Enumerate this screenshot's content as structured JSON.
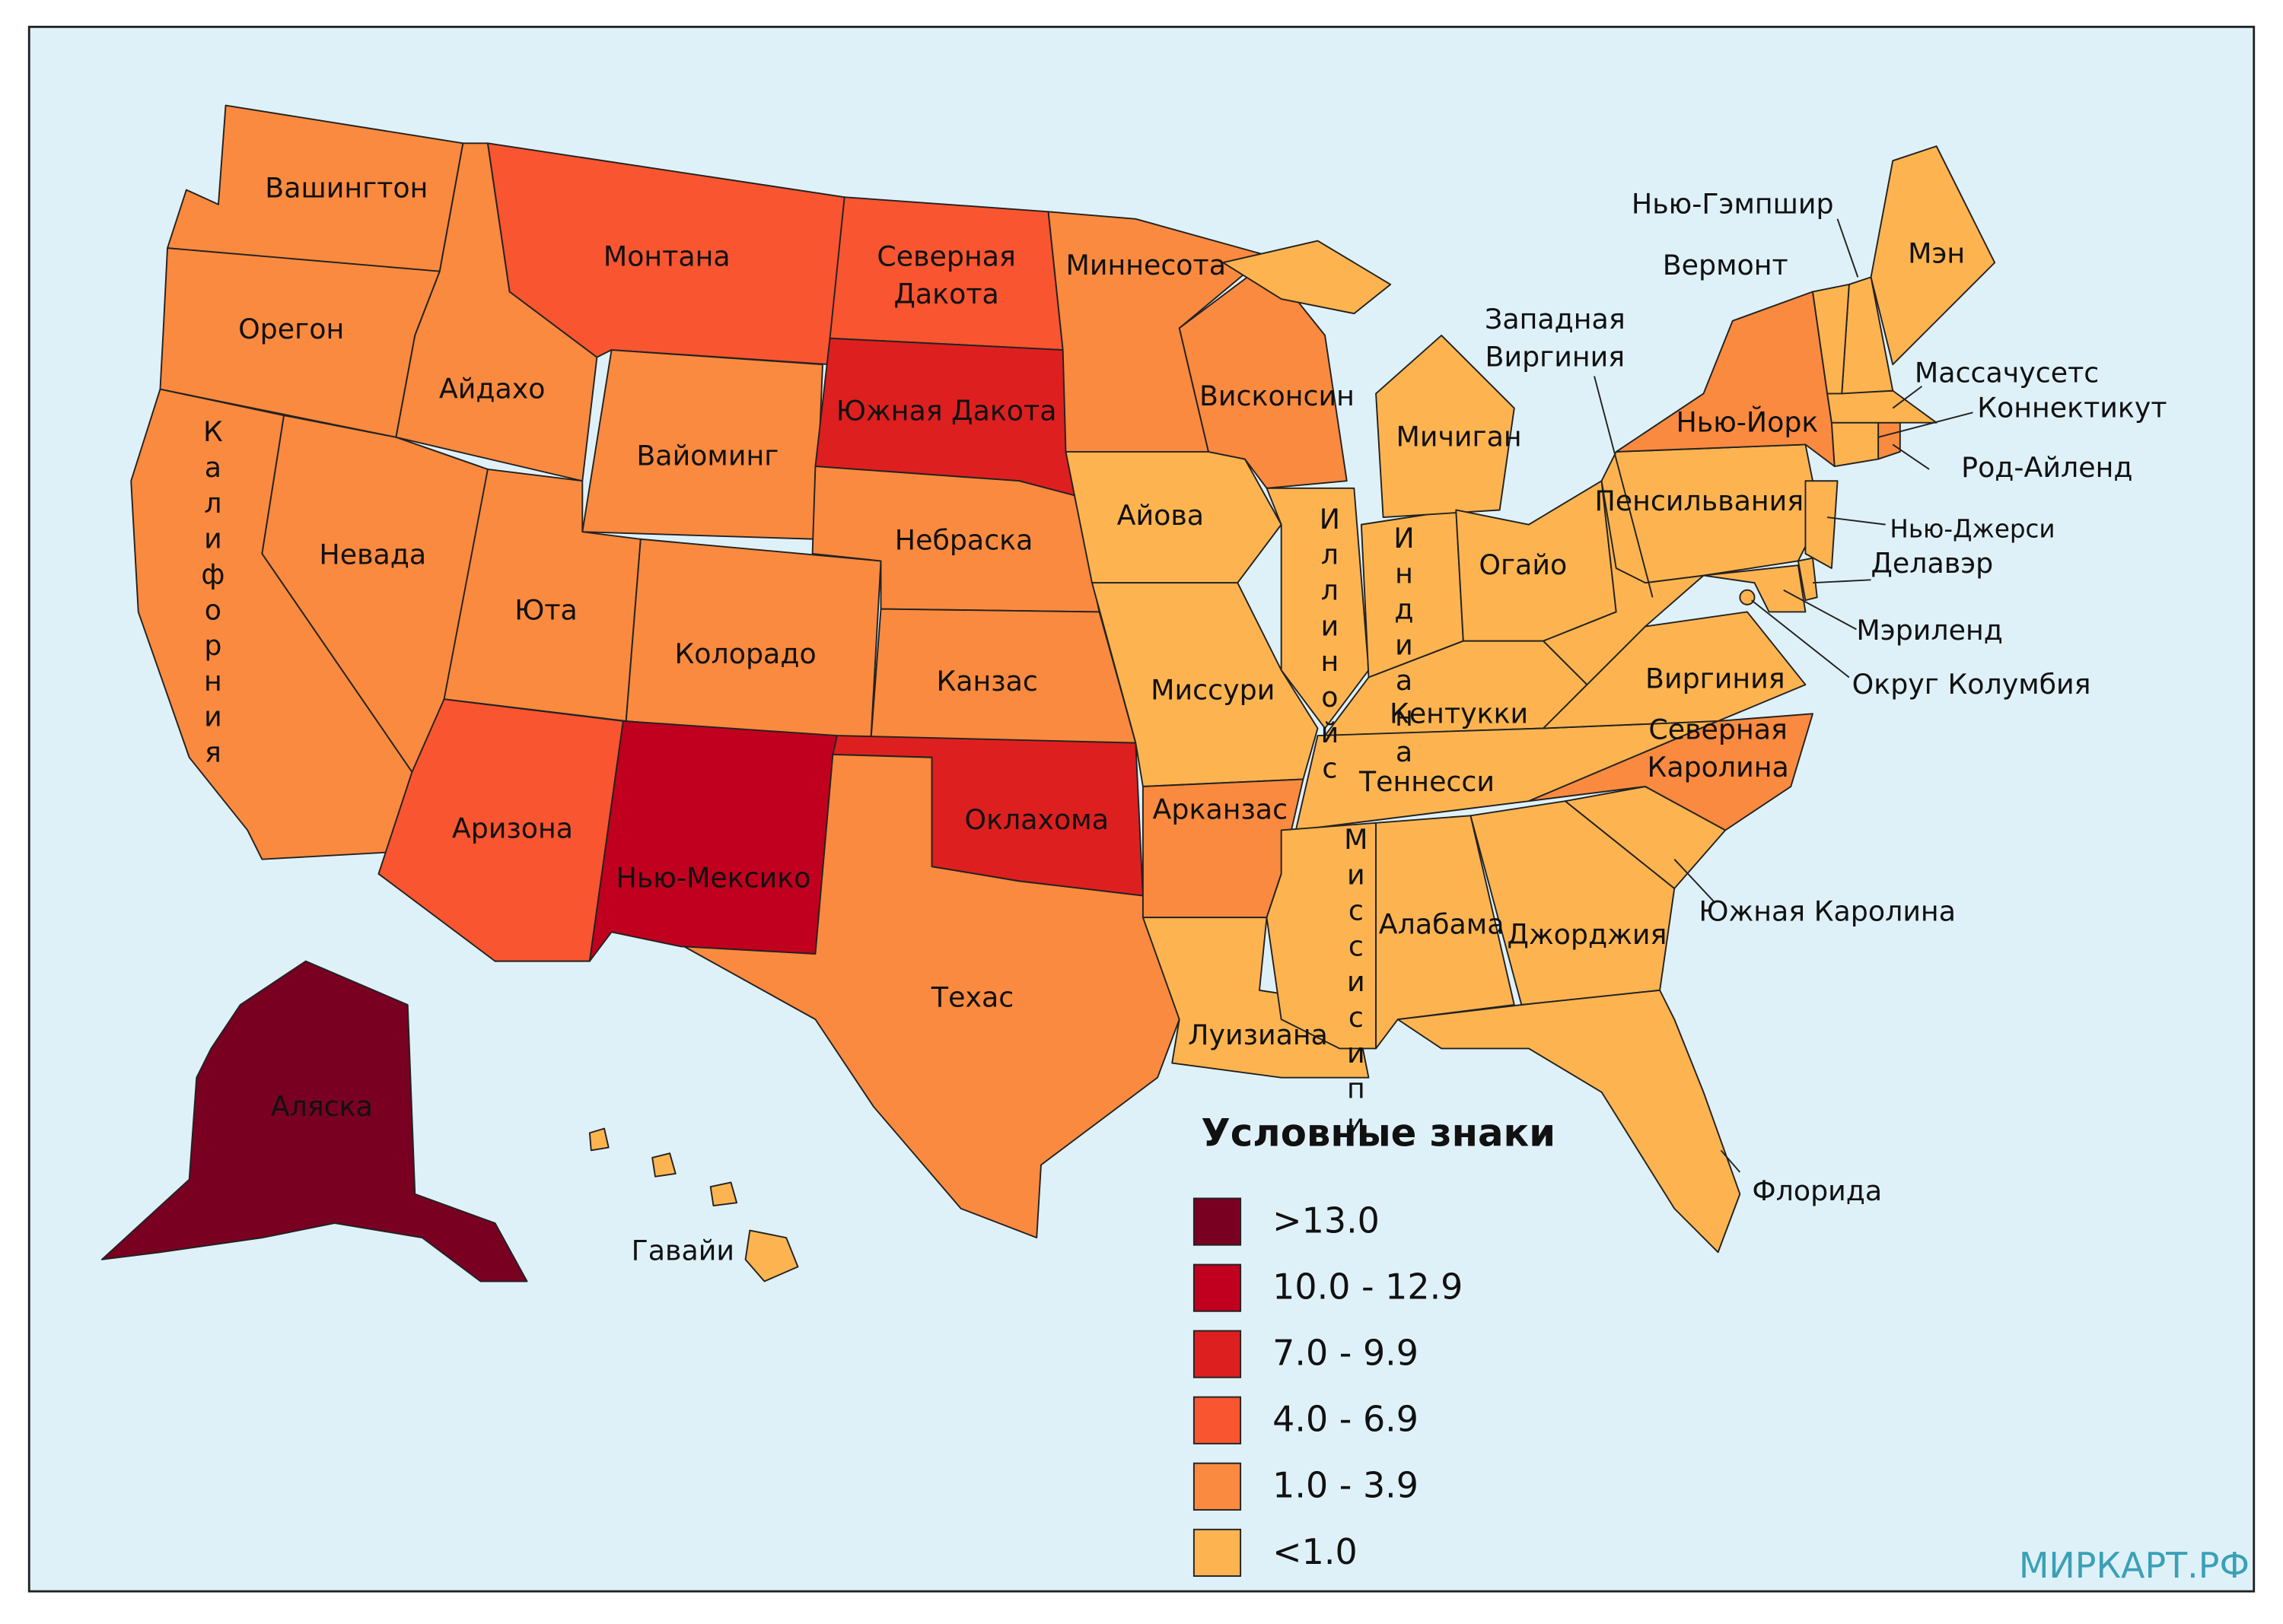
{
  "map": {
    "states": [
      {
        "name": "Вашингтон",
        "class": 4
      },
      {
        "name": "Орегон",
        "class": 4
      },
      {
        "name": "Калифорния",
        "class": 4,
        "vertical": true
      },
      {
        "name": "Айдахо",
        "class": 4
      },
      {
        "name": "Невада",
        "class": 4
      },
      {
        "name": "Монтана",
        "class": 3
      },
      {
        "name": "Вайоминг",
        "class": 4
      },
      {
        "name": "Юта",
        "class": 4
      },
      {
        "name": "Аризона",
        "class": 3
      },
      {
        "name": "Колорадо",
        "class": 4
      },
      {
        "name": "Нью-Мексико",
        "class": 1
      },
      {
        "name": [
          "Северная",
          "Дакота"
        ],
        "class": 3
      },
      {
        "name": "Южная Дакота",
        "class": 2
      },
      {
        "name": "Небраска",
        "class": 4
      },
      {
        "name": "Канзас",
        "class": 4
      },
      {
        "name": "Оклахома",
        "class": 2
      },
      {
        "name": "Техас",
        "class": 4
      },
      {
        "name": "Миннесота",
        "class": 4
      },
      {
        "name": "Айова",
        "class": 5
      },
      {
        "name": "Миссури",
        "class": 5
      },
      {
        "name": "Арканзас",
        "class": 4
      },
      {
        "name": "Луизиана",
        "class": 5
      },
      {
        "name": "Висконсин",
        "class": 4
      },
      {
        "name": "Иллинойс",
        "class": 5,
        "vertical": true
      },
      {
        "name": "Индиана",
        "class": 5,
        "vertical": true
      },
      {
        "name": "Мичиган",
        "class": 5
      },
      {
        "name": "Огайо",
        "class": 5
      },
      {
        "name": "Кентукки",
        "class": 5
      },
      {
        "name": "Теннесси",
        "class": 5
      },
      {
        "name": "Миссисипи",
        "class": 5,
        "vertical": true
      },
      {
        "name": "Алабама",
        "class": 5
      },
      {
        "name": "Джорджия",
        "class": 5
      },
      {
        "name": "Флорида",
        "class": 5
      },
      {
        "name": "Южная Каролина",
        "class": 5
      },
      {
        "name": [
          "Северная",
          "Каролина"
        ],
        "class": 4
      },
      {
        "name": "Виргиния",
        "class": 5
      },
      {
        "name": [
          "Западная",
          "Виргиния"
        ],
        "class": 5
      },
      {
        "name": "Пенсильвания",
        "class": 5
      },
      {
        "name": "Нью-Йорк",
        "class": 4
      },
      {
        "name": "Нью-Джерси",
        "class": 5
      },
      {
        "name": "Делавэр",
        "class": 5
      },
      {
        "name": "Мэриленд",
        "class": 5
      },
      {
        "name": "Округ Колумбия",
        "class": 5
      },
      {
        "name": "Род-Айленд",
        "class": 4
      },
      {
        "name": "Коннектикут",
        "class": 5
      },
      {
        "name": "Массачусетс",
        "class": 5
      },
      {
        "name": "Нью-Гэмпшир",
        "class": 5
      },
      {
        "name": "Вермонт",
        "class": 5
      },
      {
        "name": "Мэн",
        "class": 5
      },
      {
        "name": "Аляска",
        "class": 0
      },
      {
        "name": "Гавайи",
        "class": 5
      }
    ],
    "legend": {
      "title": "Условные знаки",
      "items": [
        {
          "label": ">13.0",
          "color": "#7a0022"
        },
        {
          "label": "10.0 - 12.9",
          "color": "#c0001e"
        },
        {
          "label": "7.0 - 9.9",
          "color": "#de1f1f"
        },
        {
          "label": "4.0 - 6.9",
          "color": "#f85530"
        },
        {
          "label": "1.0 - 3.9",
          "color": "#fa8a3f"
        },
        {
          "label": "<1.0",
          "color": "#fdb450"
        }
      ]
    },
    "watermark": "МИРКАРТ.РФ"
  }
}
